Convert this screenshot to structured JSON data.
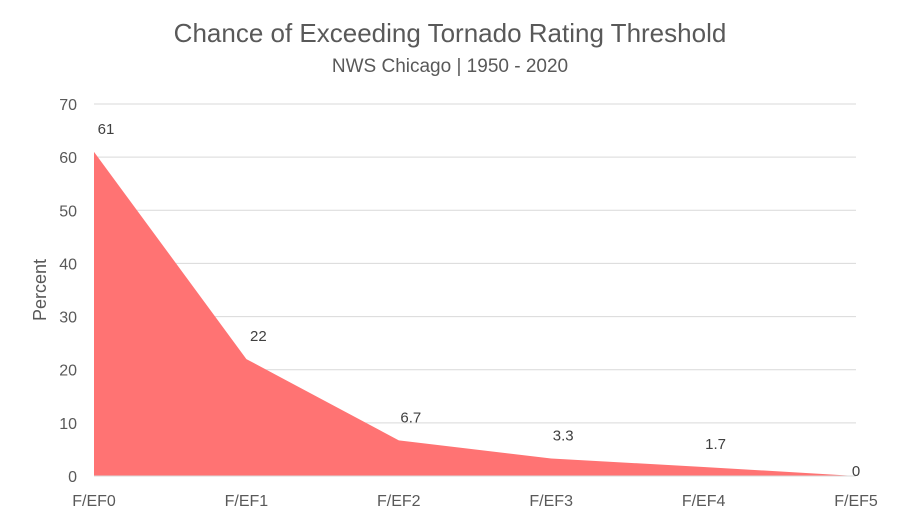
{
  "chart_data": {
    "type": "area",
    "title": "Chance of Exceeding Tornado Rating Threshold",
    "subtitle": "NWS Chicago | 1950 - 2020",
    "xlabel": "",
    "ylabel": "Percent",
    "categories": [
      "F/EF0",
      "F/EF1",
      "F/EF2",
      "F/EF3",
      "F/EF4",
      "F/EF5"
    ],
    "series": [
      {
        "values": [
          61,
          22,
          6.7,
          3.3,
          1.7,
          0
        ],
        "data_labels": [
          "61",
          "22",
          "6.7",
          "3.3",
          "1.7",
          "0"
        ],
        "color": "#ff7373"
      }
    ],
    "ylim": [
      0,
      70
    ],
    "yticks": [
      0,
      10,
      20,
      30,
      40,
      50,
      60,
      70
    ],
    "grid": true,
    "legend": "none"
  }
}
